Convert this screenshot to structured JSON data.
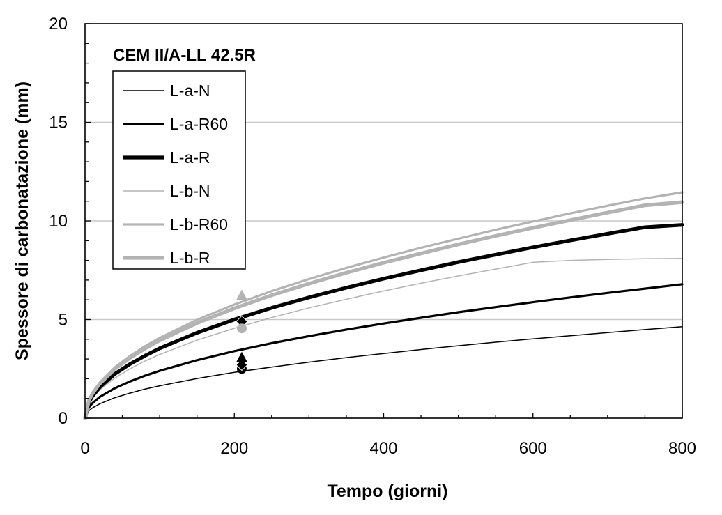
{
  "chart_data": {
    "type": "line",
    "title": "CEM II/A-LL 42.5R",
    "xlabel": "Tempo (giorni)",
    "ylabel": "Spessore di carbonatazione (mm)",
    "xlim": [
      0,
      800
    ],
    "ylim": [
      0,
      20
    ],
    "x_ticks": [
      "0",
      "200",
      "400",
      "600",
      "800"
    ],
    "y_ticks": [
      "0",
      "5",
      "10",
      "15",
      "20"
    ],
    "grid": "horizontal",
    "legend_position": "top-left",
    "curve_x": [
      0,
      5,
      10,
      20,
      40,
      60,
      80,
      100,
      150,
      200,
      250,
      300,
      350,
      400,
      450,
      500,
      550,
      600,
      650,
      700,
      750,
      800
    ],
    "series": [
      {
        "name": "L-a-N",
        "color": "#000000",
        "weight": "thin",
        "values": [
          0,
          0.37,
          0.52,
          0.73,
          1.04,
          1.27,
          1.47,
          1.64,
          2.01,
          2.32,
          2.59,
          2.84,
          3.07,
          3.28,
          3.48,
          3.67,
          3.85,
          4.02,
          4.18,
          4.34,
          4.49,
          4.64
        ]
      },
      {
        "name": "L-a-R60",
        "color": "#000000",
        "weight": "medium",
        "values": [
          0,
          0.54,
          0.76,
          1.08,
          1.52,
          1.86,
          2.15,
          2.4,
          2.94,
          3.4,
          3.8,
          4.16,
          4.49,
          4.8,
          5.09,
          5.37,
          5.63,
          5.88,
          6.12,
          6.35,
          6.57,
          6.79
        ]
      },
      {
        "name": "L-a-R",
        "color": "#000000",
        "weight": "thick",
        "values": [
          0,
          0.79,
          1.12,
          1.58,
          2.24,
          2.74,
          3.16,
          3.54,
          4.33,
          5.0,
          5.59,
          6.12,
          6.61,
          7.07,
          7.5,
          7.91,
          8.29,
          8.66,
          9.01,
          9.35,
          9.68,
          9.8
        ]
      },
      {
        "name": "L-b-N",
        "color": "#b3b3b3",
        "weight": "thin",
        "values": [
          0,
          0.72,
          1.02,
          1.44,
          2.04,
          2.5,
          2.89,
          3.23,
          3.95,
          4.56,
          5.1,
          5.59,
          6.03,
          6.45,
          6.84,
          7.21,
          7.56,
          7.9,
          8.0,
          8.05,
          8.08,
          8.1
        ]
      },
      {
        "name": "L-b-R60",
        "color": "#b3b3b3",
        "weight": "medium",
        "values": [
          0,
          0.91,
          1.29,
          1.82,
          2.58,
          3.15,
          3.64,
          4.07,
          4.99,
          5.76,
          6.44,
          7.05,
          7.62,
          8.14,
          8.64,
          9.1,
          9.55,
          9.97,
          10.38,
          10.77,
          11.14,
          11.45
        ]
      },
      {
        "name": "L-b-R",
        "color": "#b3b3b3",
        "weight": "thick",
        "values": [
          0,
          0.88,
          1.25,
          1.76,
          2.49,
          3.05,
          3.52,
          3.94,
          4.82,
          5.57,
          6.23,
          6.82,
          7.37,
          7.88,
          8.35,
          8.81,
          9.24,
          9.65,
          10.04,
          10.42,
          10.79,
          10.95
        ]
      }
    ],
    "markers": [
      {
        "x": 210,
        "y": 2.5,
        "shape": "circle",
        "color": "#000000"
      },
      {
        "x": 210,
        "y": 2.7,
        "shape": "diamond",
        "color": "#000000"
      },
      {
        "x": 210,
        "y": 3.05,
        "shape": "triangle",
        "color": "#000000"
      },
      {
        "x": 210,
        "y": 4.9,
        "shape": "diamond",
        "color": "#000000"
      },
      {
        "x": 210,
        "y": 4.55,
        "shape": "circle",
        "color": "#b3b3b3"
      },
      {
        "x": 210,
        "y": 6.2,
        "shape": "triangle",
        "color": "#b3b3b3"
      }
    ]
  }
}
